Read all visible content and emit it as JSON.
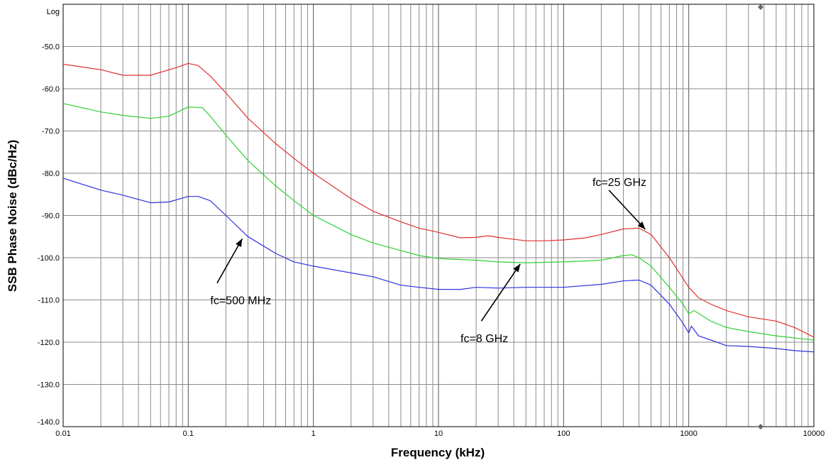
{
  "chart_data": {
    "type": "line",
    "xlabel": "Frequency (kHz)",
    "ylabel": "SSB Phase Noise (dBc/Hz)",
    "x_scale": "log",
    "xlim": [
      0.01,
      10000
    ],
    "ylim": [
      -140,
      -40
    ],
    "scale_label": "Log",
    "grid": true,
    "x_ticks": [
      {
        "value": 0.01,
        "label": "0.01"
      },
      {
        "value": 0.1,
        "label": "0.1"
      },
      {
        "value": 1,
        "label": "1"
      },
      {
        "value": 10,
        "label": "10"
      },
      {
        "value": 100,
        "label": "100"
      },
      {
        "value": 1000,
        "label": "1000"
      },
      {
        "value": 10000,
        "label": "10000"
      }
    ],
    "y_ticks": [
      {
        "value": -50,
        "label": "-50.0"
      },
      {
        "value": -60,
        "label": "-60.0"
      },
      {
        "value": -70,
        "label": "-70.0"
      },
      {
        "value": -80,
        "label": "-80.0"
      },
      {
        "value": -90,
        "label": "-90.0"
      },
      {
        "value": -100,
        "label": "-100.0"
      },
      {
        "value": -110,
        "label": "-110.0"
      },
      {
        "value": -120,
        "label": "-120.0"
      },
      {
        "value": -130,
        "label": "-130.0"
      },
      {
        "value": -140,
        "label": "-140.0"
      }
    ],
    "series": [
      {
        "color": "#e03030",
        "points": [
          [
            0.01,
            -54.2
          ],
          [
            0.02,
            -55.5
          ],
          [
            0.03,
            -56.8
          ],
          [
            0.05,
            -56.8
          ],
          [
            0.08,
            -55
          ],
          [
            0.1,
            -54
          ],
          [
            0.12,
            -54.5
          ],
          [
            0.15,
            -57
          ],
          [
            0.2,
            -61
          ],
          [
            0.3,
            -67
          ],
          [
            0.5,
            -73
          ],
          [
            0.7,
            -76.5
          ],
          [
            1,
            -80
          ],
          [
            2,
            -86
          ],
          [
            3,
            -89
          ],
          [
            5,
            -91.5
          ],
          [
            7,
            -93
          ],
          [
            10,
            -94
          ],
          [
            15,
            -95.3
          ],
          [
            20,
            -95.2
          ],
          [
            25,
            -94.8
          ],
          [
            30,
            -95.2
          ],
          [
            50,
            -96
          ],
          [
            70,
            -96
          ],
          [
            100,
            -95.8
          ],
          [
            150,
            -95.3
          ],
          [
            200,
            -94.5
          ],
          [
            300,
            -93.2
          ],
          [
            400,
            -93
          ],
          [
            500,
            -94.5
          ],
          [
            700,
            -100
          ],
          [
            1000,
            -107
          ],
          [
            1200,
            -109.5
          ],
          [
            1500,
            -111
          ],
          [
            2000,
            -112.5
          ],
          [
            3000,
            -114
          ],
          [
            5000,
            -115
          ],
          [
            7000,
            -116.5
          ],
          [
            10000,
            -118.8
          ]
        ]
      },
      {
        "color": "#30d030",
        "points": [
          [
            0.01,
            -63.5
          ],
          [
            0.02,
            -65.5
          ],
          [
            0.03,
            -66.3
          ],
          [
            0.05,
            -67
          ],
          [
            0.07,
            -66.5
          ],
          [
            0.1,
            -64.3
          ],
          [
            0.13,
            -64.5
          ],
          [
            0.15,
            -66.5
          ],
          [
            0.2,
            -71
          ],
          [
            0.3,
            -77
          ],
          [
            0.5,
            -83
          ],
          [
            0.7,
            -86.5
          ],
          [
            1,
            -90
          ],
          [
            2,
            -94.5
          ],
          [
            3,
            -96.5
          ],
          [
            5,
            -98.3
          ],
          [
            7,
            -99.5
          ],
          [
            10,
            -100.2
          ],
          [
            20,
            -100.6
          ],
          [
            30,
            -101
          ],
          [
            50,
            -101.2
          ],
          [
            100,
            -101
          ],
          [
            200,
            -100.6
          ],
          [
            300,
            -99.5
          ],
          [
            350,
            -99.3
          ],
          [
            400,
            -100
          ],
          [
            500,
            -102
          ],
          [
            700,
            -107
          ],
          [
            900,
            -111
          ],
          [
            1000,
            -113.3
          ],
          [
            1100,
            -112.5
          ],
          [
            1500,
            -115
          ],
          [
            2000,
            -116.5
          ],
          [
            3000,
            -117.5
          ],
          [
            5000,
            -118.5
          ],
          [
            10000,
            -119.5
          ]
        ]
      },
      {
        "color": "#3030e0",
        "points": [
          [
            0.01,
            -81.2
          ],
          [
            0.02,
            -84
          ],
          [
            0.03,
            -85.2
          ],
          [
            0.05,
            -87
          ],
          [
            0.07,
            -86.8
          ],
          [
            0.1,
            -85.5
          ],
          [
            0.12,
            -85.5
          ],
          [
            0.15,
            -86.5
          ],
          [
            0.2,
            -90
          ],
          [
            0.3,
            -95
          ],
          [
            0.5,
            -99
          ],
          [
            0.7,
            -101
          ],
          [
            1,
            -102
          ],
          [
            2,
            -103.6
          ],
          [
            3,
            -104.5
          ],
          [
            5,
            -106.5
          ],
          [
            7,
            -107
          ],
          [
            10,
            -107.5
          ],
          [
            15,
            -107.5
          ],
          [
            20,
            -107
          ],
          [
            30,
            -107.2
          ],
          [
            50,
            -107
          ],
          [
            100,
            -107
          ],
          [
            200,
            -106.3
          ],
          [
            300,
            -105.5
          ],
          [
            400,
            -105.3
          ],
          [
            500,
            -106.5
          ],
          [
            700,
            -111
          ],
          [
            900,
            -115.5
          ],
          [
            1000,
            -117.8
          ],
          [
            1050,
            -116.2
          ],
          [
            1200,
            -118.5
          ],
          [
            1500,
            -119.5
          ],
          [
            2000,
            -120.8
          ],
          [
            3000,
            -121
          ],
          [
            5000,
            -121.5
          ],
          [
            7000,
            -122
          ],
          [
            10000,
            -122.3
          ]
        ]
      }
    ],
    "annotations": [
      {
        "text": "fc=25 GHz",
        "text_x": 170,
        "text_y": -83,
        "tail_x": 230,
        "tail_y": -84,
        "head_x": 450,
        "head_y": -93.3
      },
      {
        "text": "fc=8 GHz",
        "text_x": 15,
        "text_y": -120,
        "tail_x": 22,
        "tail_y": -115,
        "head_x": 45,
        "head_y": -101.5
      },
      {
        "text": "fc=500 MHz",
        "text_x": 0.15,
        "text_y": -111,
        "tail_x": 0.17,
        "tail_y": -106,
        "head_x": 0.27,
        "head_y": -95.5
      }
    ]
  }
}
